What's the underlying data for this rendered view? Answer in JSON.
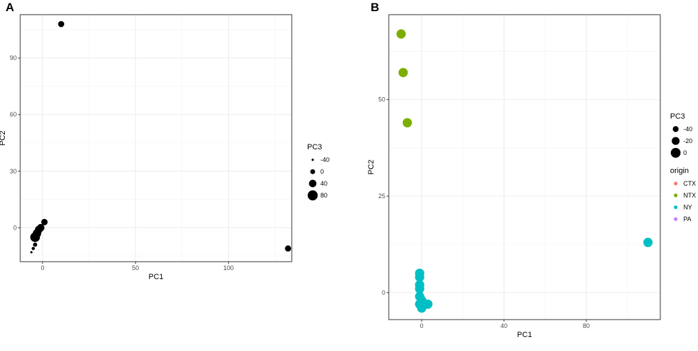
{
  "chart_data": [
    {
      "panel": "A",
      "type": "scatter",
      "xlabel": "PC1",
      "ylabel": "PC2",
      "xlim": [
        -12,
        134
      ],
      "ylim": [
        -18,
        113
      ],
      "xticks": [
        0,
        50,
        100
      ],
      "yticks": [
        0,
        30,
        60,
        90
      ],
      "grid": true,
      "size_legend": {
        "title": "PC3",
        "entries": [
          {
            "label": "-40",
            "value": -40
          },
          {
            "label": "0",
            "value": 0
          },
          {
            "label": "40",
            "value": 40
          },
          {
            "label": "80",
            "value": 80
          }
        ]
      },
      "color": "#000000",
      "points": [
        {
          "x": 10,
          "y": 108,
          "pc3": 20
        },
        {
          "x": 132,
          "y": -11,
          "pc3": 20
        },
        {
          "x": 1,
          "y": 3,
          "pc3": 25
        },
        {
          "x": -1,
          "y": 0,
          "pc3": 40
        },
        {
          "x": -2,
          "y": -1,
          "pc3": 45
        },
        {
          "x": -3,
          "y": -3,
          "pc3": 55
        },
        {
          "x": -4,
          "y": -5,
          "pc3": 75
        },
        {
          "x": -4,
          "y": -9,
          "pc3": -10
        },
        {
          "x": -5,
          "y": -11,
          "pc3": -25
        },
        {
          "x": -6,
          "y": -13,
          "pc3": -40
        }
      ]
    },
    {
      "panel": "B",
      "type": "scatter",
      "xlabel": "PC1",
      "ylabel": "PC2",
      "xlim": [
        -16,
        116
      ],
      "ylim": [
        -7,
        72
      ],
      "xticks": [
        0,
        40,
        80
      ],
      "yticks": [
        0,
        25,
        50
      ],
      "grid": true,
      "size_legend": {
        "title": "PC3",
        "entries": [
          {
            "label": "-40",
            "value": -40
          },
          {
            "label": "-20",
            "value": -20
          },
          {
            "label": "0",
            "value": 0
          }
        ]
      },
      "color_legend": {
        "title": "origin",
        "entries": [
          {
            "label": "CTX",
            "color": "#F8766D"
          },
          {
            "label": "NTX",
            "color": "#7CAE00"
          },
          {
            "label": "NY",
            "color": "#00BFC4"
          },
          {
            "label": "PA",
            "color": "#C77CFF"
          }
        ]
      },
      "points": [
        {
          "x": -10,
          "y": 67,
          "pc3": -5,
          "origin": "NTX"
        },
        {
          "x": -9,
          "y": 57,
          "pc3": -5,
          "origin": "NTX"
        },
        {
          "x": -7,
          "y": 44,
          "pc3": -5,
          "origin": "NTX"
        },
        {
          "x": 110,
          "y": 13,
          "pc3": -5,
          "origin": "NY"
        },
        {
          "x": -1,
          "y": 5,
          "pc3": -5,
          "origin": "NY"
        },
        {
          "x": -1,
          "y": 4,
          "pc3": -5,
          "origin": "NY"
        },
        {
          "x": -1,
          "y": 2,
          "pc3": -5,
          "origin": "NY"
        },
        {
          "x": -1,
          "y": 1,
          "pc3": -5,
          "origin": "NY"
        },
        {
          "x": -1,
          "y": -1,
          "pc3": -5,
          "origin": "NY"
        },
        {
          "x": 0,
          "y": -2,
          "pc3": -5,
          "origin": "NY"
        },
        {
          "x": -1,
          "y": -3,
          "pc3": -5,
          "origin": "NY"
        },
        {
          "x": 1,
          "y": -3,
          "pc3": -5,
          "origin": "NY"
        },
        {
          "x": 3,
          "y": -3,
          "pc3": -5,
          "origin": "NY"
        },
        {
          "x": 0,
          "y": -4,
          "pc3": -5,
          "origin": "NY"
        }
      ]
    }
  ]
}
